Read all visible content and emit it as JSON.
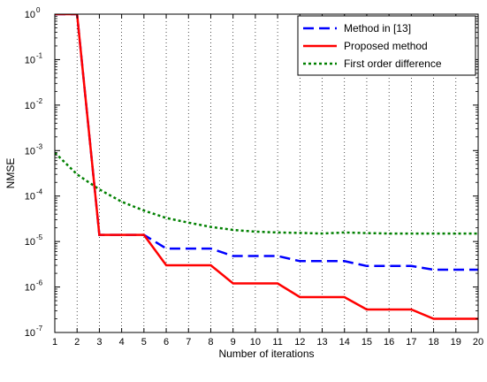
{
  "chart_data": {
    "type": "line",
    "title": "",
    "xlabel": "Number of iterations",
    "ylabel": "NMSE",
    "xlim": [
      1,
      20
    ],
    "ylim": [
      1e-07,
      1
    ],
    "yscale": "log",
    "x_ticks": [
      1,
      2,
      3,
      4,
      5,
      6,
      7,
      8,
      9,
      10,
      11,
      12,
      13,
      14,
      15,
      16,
      17,
      18,
      19,
      20
    ],
    "y_ticks": [
      {
        "value": 1e-07,
        "base": "10",
        "exp": "-7"
      },
      {
        "value": 1e-06,
        "base": "10",
        "exp": "-6"
      },
      {
        "value": 1e-05,
        "base": "10",
        "exp": "-5"
      },
      {
        "value": 0.0001,
        "base": "10",
        "exp": "-4"
      },
      {
        "value": 0.001,
        "base": "10",
        "exp": "-3"
      },
      {
        "value": 0.01,
        "base": "10",
        "exp": "-2"
      },
      {
        "value": 0.1,
        "base": "10",
        "exp": "-1"
      },
      {
        "value": 1,
        "base": "10",
        "exp": "0"
      }
    ],
    "grid": "vertical-dotted",
    "legend_position": "top-right",
    "series": [
      {
        "name": "Method in [13]",
        "color": "#0000ff",
        "dash": "dashed",
        "x": [
          1,
          2,
          3,
          4,
          5,
          6,
          7,
          8,
          9,
          10,
          11,
          12,
          13,
          14,
          15,
          16,
          17,
          18,
          19,
          20
        ],
        "y": [
          1,
          1,
          1.4e-05,
          1.4e-05,
          1.4e-05,
          7e-06,
          7e-06,
          7e-06,
          4.8e-06,
          4.8e-06,
          4.8e-06,
          3.7e-06,
          3.7e-06,
          3.7e-06,
          2.9e-06,
          2.9e-06,
          2.9e-06,
          2.4e-06,
          2.4e-06,
          2.4e-06
        ],
        "step": true
      },
      {
        "name": "Proposed method",
        "color": "#ff0000",
        "dash": "solid",
        "x": [
          1,
          2,
          3,
          4,
          5,
          6,
          7,
          8,
          9,
          10,
          11,
          12,
          13,
          14,
          15,
          16,
          17,
          18,
          19,
          20
        ],
        "y": [
          1,
          1,
          1.4e-05,
          1.4e-05,
          1.4e-05,
          3e-06,
          3e-06,
          3e-06,
          1.2e-06,
          1.2e-06,
          1.2e-06,
          6e-07,
          6e-07,
          6e-07,
          3.2e-07,
          3.2e-07,
          3.2e-07,
          2e-07,
          2e-07,
          2e-07
        ],
        "step": true
      },
      {
        "name": "First order difference",
        "color": "#008000",
        "dash": "dotted",
        "x": [
          1,
          2,
          3,
          4,
          5,
          6,
          7,
          8,
          9,
          10,
          11,
          12,
          13,
          14,
          15,
          16,
          17,
          18,
          19,
          20
        ],
        "y": [
          0.0009,
          0.0003,
          0.00014,
          7.5e-05,
          4.8e-05,
          3.3e-05,
          2.6e-05,
          2.1e-05,
          1.8e-05,
          1.65e-05,
          1.58e-05,
          1.55e-05,
          1.5e-05,
          1.58e-05,
          1.53e-05,
          1.5e-05,
          1.5e-05,
          1.5e-05,
          1.5e-05,
          1.5e-05
        ],
        "step": false
      }
    ]
  }
}
